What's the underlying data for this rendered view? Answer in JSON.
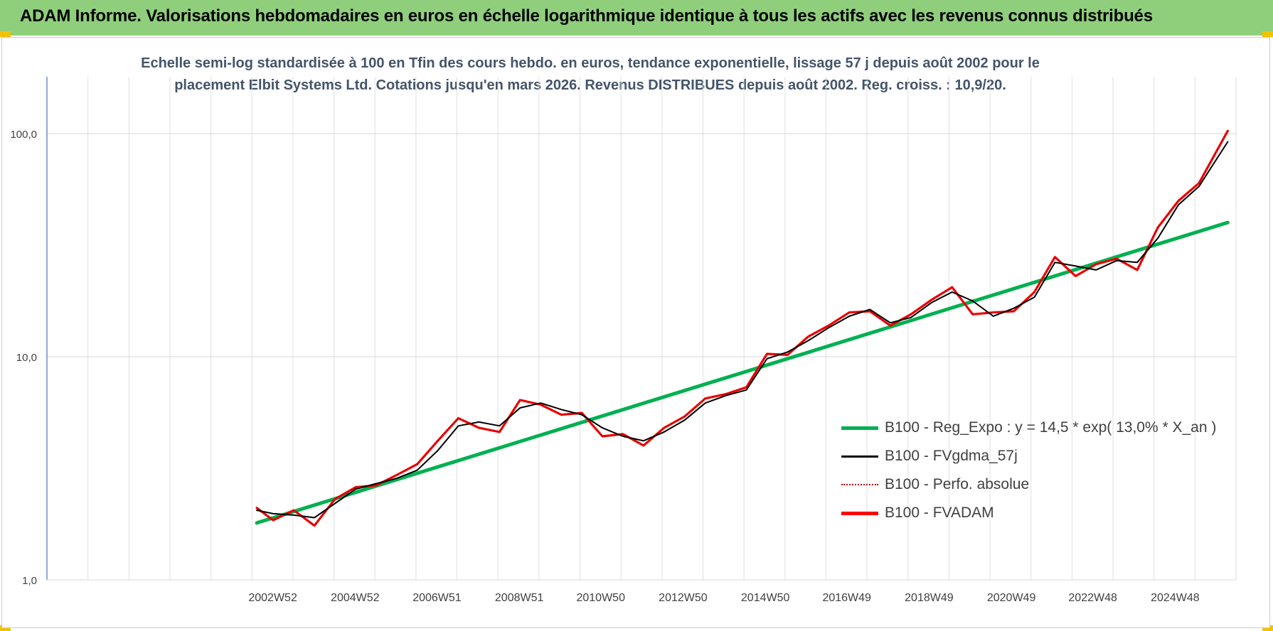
{
  "header": {
    "title": "ADAM Informe. Valorisations hebdomadaires en euros en échelle logarithmique identique à tous les actifs avec les revenus connus distribués"
  },
  "colors": {
    "header_bg": "#8fcf7c",
    "corner_marker": "#f2c200",
    "regression": "#00b050",
    "smoothed": "#000000",
    "perf_absolue": "#c00000",
    "fvadam": "#ff0000",
    "subtitle_text": "#44546a",
    "grid": "#d9d9d9"
  },
  "chart_data": {
    "type": "line",
    "title_lines": [
      "Echelle semi-log standardisée à 100 en Tfin des cours hebdo. en euros, tendance exponentielle, lissage 57 j depuis août 2002 pour le",
      "placement Elbit Systems Ltd. Cotations jusqu'en mars 2026. Revenus DISTRIBUES depuis août 2002. Reg. croiss. : 10,9/20."
    ],
    "y_scale": "log",
    "ylim": [
      1,
      180
    ],
    "y_ticks": [
      {
        "value": 1,
        "label": "1,0"
      },
      {
        "value": 10,
        "label": "10,0"
      },
      {
        "value": 100,
        "label": "100,0"
      }
    ],
    "x_unit": "year",
    "xlim": [
      1997.5,
      2026.4
    ],
    "x_ticks": [
      {
        "value": 2002.99,
        "label": "2002W52"
      },
      {
        "value": 2004.99,
        "label": "2004W52"
      },
      {
        "value": 2006.98,
        "label": "2006W51"
      },
      {
        "value": 2008.98,
        "label": "2008W51"
      },
      {
        "value": 2010.96,
        "label": "2010W50"
      },
      {
        "value": 2012.96,
        "label": "2012W50"
      },
      {
        "value": 2014.96,
        "label": "2014W50"
      },
      {
        "value": 2016.94,
        "label": "2016W49"
      },
      {
        "value": 2018.94,
        "label": "2018W49"
      },
      {
        "value": 2020.94,
        "label": "2020W49"
      },
      {
        "value": 2022.92,
        "label": "2022W48"
      },
      {
        "value": 2024.92,
        "label": "2024W48"
      }
    ],
    "grid": true,
    "legend_position": "right-middle",
    "series": [
      {
        "name": "B100 - Reg_Expo : y = 14,5 * exp( 13,0% *  X_an )",
        "style": "solid-thick",
        "x": [
          2002.6,
          2026.2
        ],
        "y": [
          1.8,
          40
        ]
      },
      {
        "name": "B100 - FVgdma_57j",
        "style": "solid-thin",
        "x": [
          2002.6,
          2003.0,
          2003.5,
          2004.0,
          2004.5,
          2005.0,
          2005.5,
          2006.0,
          2006.5,
          2007.0,
          2007.5,
          2008.0,
          2008.5,
          2009.0,
          2009.5,
          2010.0,
          2010.5,
          2011.0,
          2011.5,
          2012.0,
          2012.5,
          2013.0,
          2013.5,
          2014.0,
          2014.5,
          2015.0,
          2015.5,
          2016.0,
          2016.5,
          2017.0,
          2017.5,
          2018.0,
          2018.5,
          2019.0,
          2019.5,
          2020.0,
          2020.5,
          2021.0,
          2021.5,
          2022.0,
          2022.5,
          2023.0,
          2023.5,
          2024.0,
          2024.5,
          2025.0,
          2025.5,
          2026.2
        ],
        "y": [
          2.05,
          1.98,
          1.95,
          1.9,
          2.2,
          2.55,
          2.7,
          2.85,
          3.1,
          3.8,
          4.9,
          5.1,
          4.9,
          5.9,
          6.2,
          5.8,
          5.5,
          4.8,
          4.4,
          4.2,
          4.6,
          5.2,
          6.2,
          6.7,
          7.1,
          9.8,
          10.5,
          11.8,
          13.5,
          15.2,
          16.3,
          14.2,
          15.0,
          17.5,
          19.5,
          17.8,
          15.2,
          16.5,
          18.5,
          26.5,
          25.5,
          24.5,
          27.0,
          26.5,
          34.0,
          48.0,
          58.0,
          92.0
        ]
      },
      {
        "name": "B100 - Perfo. absolue",
        "style": "dotted",
        "x": [
          2002.6,
          2003.0,
          2003.5,
          2004.0,
          2004.5,
          2005.0,
          2005.5,
          2006.0,
          2006.5,
          2007.0,
          2007.5,
          2008.0,
          2008.5,
          2009.0,
          2009.5,
          2010.0,
          2010.5,
          2011.0,
          2011.5,
          2012.0,
          2012.5,
          2013.0,
          2013.5,
          2014.0,
          2014.5,
          2015.0,
          2015.5,
          2016.0,
          2016.5,
          2017.0,
          2017.5,
          2018.0,
          2018.5,
          2019.0,
          2019.5,
          2020.0,
          2020.5,
          2021.0,
          2021.5,
          2022.0,
          2022.5,
          2023.0,
          2023.5,
          2024.0,
          2024.5,
          2025.0,
          2025.5,
          2026.2
        ],
        "y": [
          2.1,
          1.85,
          2.05,
          1.75,
          2.3,
          2.6,
          2.65,
          2.95,
          3.3,
          4.2,
          5.3,
          4.8,
          4.6,
          6.4,
          6.1,
          5.5,
          5.6,
          4.4,
          4.5,
          4.0,
          4.8,
          5.4,
          6.5,
          6.8,
          7.3,
          10.3,
          10.2,
          12.3,
          13.8,
          15.8,
          16.0,
          13.8,
          15.5,
          18.0,
          20.5,
          15.5,
          15.8,
          16.0,
          19.5,
          28.0,
          23.0,
          26.0,
          27.5,
          24.5,
          38.0,
          50.0,
          60.0,
          103.0
        ]
      },
      {
        "name": "B100 - FVADAM",
        "style": "solid-thick",
        "x": [
          2002.6,
          2003.0,
          2003.5,
          2004.0,
          2004.5,
          2005.0,
          2005.5,
          2006.0,
          2006.5,
          2007.0,
          2007.5,
          2008.0,
          2008.5,
          2009.0,
          2009.5,
          2010.0,
          2010.5,
          2011.0,
          2011.5,
          2012.0,
          2012.5,
          2013.0,
          2013.5,
          2014.0,
          2014.5,
          2015.0,
          2015.5,
          2016.0,
          2016.5,
          2017.0,
          2017.5,
          2018.0,
          2018.5,
          2019.0,
          2019.5,
          2020.0,
          2020.5,
          2021.0,
          2021.5,
          2022.0,
          2022.5,
          2023.0,
          2023.5,
          2024.0,
          2024.5,
          2025.0,
          2025.5,
          2026.2
        ],
        "y": [
          2.1,
          1.85,
          2.05,
          1.75,
          2.3,
          2.6,
          2.65,
          2.95,
          3.3,
          4.2,
          5.3,
          4.8,
          4.6,
          6.4,
          6.1,
          5.5,
          5.6,
          4.4,
          4.5,
          4.0,
          4.8,
          5.4,
          6.5,
          6.8,
          7.3,
          10.3,
          10.2,
          12.3,
          13.8,
          15.8,
          16.0,
          13.8,
          15.5,
          18.0,
          20.5,
          15.5,
          15.8,
          16.0,
          19.5,
          28.0,
          23.0,
          26.0,
          27.5,
          24.5,
          38.0,
          50.0,
          60.0,
          103.0
        ]
      }
    ]
  }
}
